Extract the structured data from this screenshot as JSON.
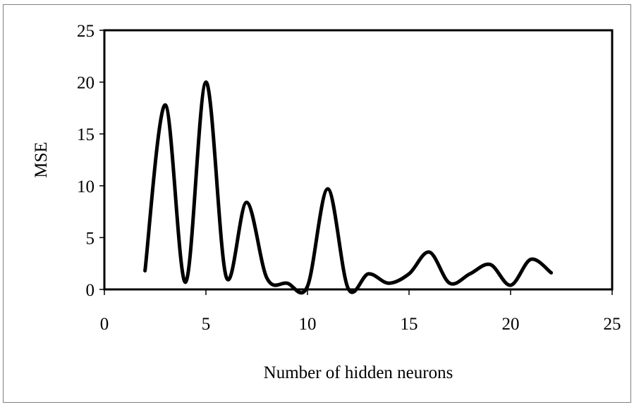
{
  "chart_data": {
    "type": "line",
    "title": "",
    "xlabel": "Number of hidden neurons",
    "ylabel": "MSE",
    "xlim": [
      0,
      25
    ],
    "ylim": [
      0,
      25
    ],
    "x_ticks": [
      "0",
      "5",
      "10",
      "15",
      "20",
      "25"
    ],
    "y_ticks": [
      "0",
      "5",
      "10",
      "15",
      "20",
      "25"
    ],
    "grid": false,
    "legend": "none",
    "series": [
      {
        "color": "#000000",
        "x": [
          2,
          3,
          4,
          5,
          6,
          7,
          8,
          9,
          10,
          11,
          12,
          13,
          14,
          15,
          16,
          17,
          18,
          19,
          20,
          21,
          22
        ],
        "y": [
          1.8,
          17.8,
          0.7,
          20.0,
          1.2,
          8.4,
          1.1,
          0.6,
          0.3,
          9.7,
          0.1,
          1.5,
          0.6,
          1.5,
          3.6,
          0.6,
          1.5,
          2.4,
          0.4,
          2.9,
          1.6
        ]
      }
    ]
  }
}
